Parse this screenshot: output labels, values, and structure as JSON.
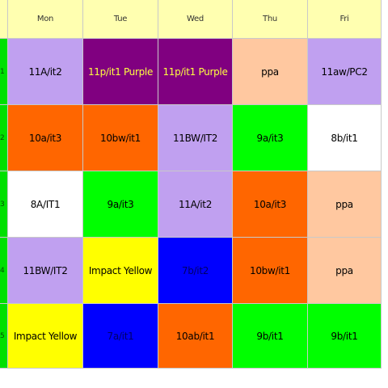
{
  "days": [
    "Mon",
    "Tue",
    "Wed",
    "Thu",
    "Fri"
  ],
  "rows": [
    {
      "period": "1",
      "cells": [
        {
          "text": "11A/it2",
          "bg": "#c0a0f0"
        },
        {
          "text": "11p/it1 Purple",
          "bg": "#800080",
          "fg": "yellow"
        },
        {
          "text": "11p/it1 Purple",
          "bg": "#800080",
          "fg": "yellow"
        },
        {
          "text": "ppa",
          "bg": "#ffc8a0"
        },
        {
          "text": "11aw/PC2",
          "bg": "#c0a0f0"
        }
      ]
    },
    {
      "period": "2",
      "cells": [
        {
          "text": "10a/it3",
          "bg": "#ff6600"
        },
        {
          "text": "10bw/it1",
          "bg": "#ff6600"
        },
        {
          "text": "11BW/IT2",
          "bg": "#c0a0f0"
        },
        {
          "text": "9a/it3",
          "bg": "#00ff00"
        },
        {
          "text": "8b/it1",
          "bg": "#ffffff"
        }
      ]
    },
    {
      "period": "3",
      "cells": [
        {
          "text": "8A/IT1",
          "bg": "#ffffff"
        },
        {
          "text": "9a/it3",
          "bg": "#00ff00"
        },
        {
          "text": "11A/it2",
          "bg": "#c0a0f0"
        },
        {
          "text": "10a/it3",
          "bg": "#ff6600"
        },
        {
          "text": "ppa",
          "bg": "#ffc8a0"
        }
      ]
    },
    {
      "period": "4",
      "cells": [
        {
          "text": "11BW/IT2",
          "bg": "#c0a0f0"
        },
        {
          "text": "Impact Yellow",
          "bg": "#ffff00"
        },
        {
          "text": "7b/it2",
          "bg": "#0000ff",
          "fg": "dark"
        },
        {
          "text": "10bw/it1",
          "bg": "#ff6600"
        },
        {
          "text": "ppa",
          "bg": "#ffc8a0"
        }
      ]
    },
    {
      "period": "5",
      "cells": [
        {
          "text": "Impact Yellow",
          "bg": "#ffff00"
        },
        {
          "text": "7a/it1",
          "bg": "#0000ff",
          "fg": "dark"
        },
        {
          "text": "10ab/it1",
          "bg": "#ff6600"
        },
        {
          "text": "9b/it1",
          "bg": "#00ff00"
        },
        {
          "text": "9b/it1",
          "bg": "#00ff00"
        }
      ]
    }
  ]
}
